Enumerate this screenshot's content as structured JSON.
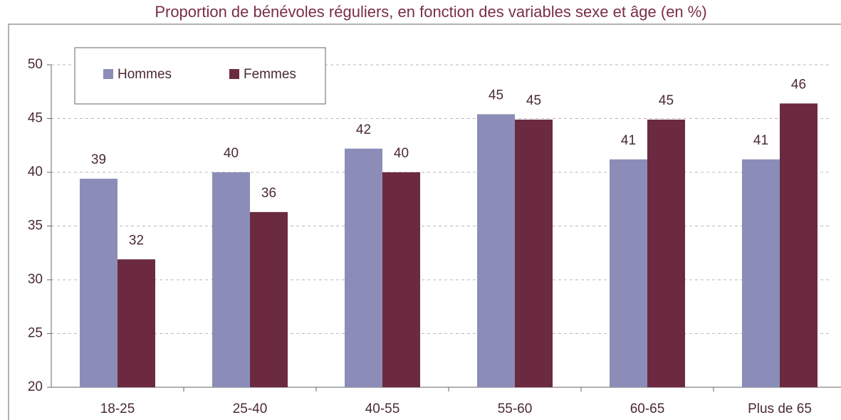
{
  "chart_data": {
    "type": "bar",
    "title": "Proportion de bénévoles réguliers, en fonction des variables sexe et âge (en %)",
    "categories": [
      "18-25",
      "25-40",
      "40-55",
      "55-60",
      "60-65",
      "Plus de 65"
    ],
    "series": [
      {
        "name": "Hommes",
        "color": "#8b8db8",
        "values": [
          39.4,
          40.0,
          42.2,
          45.4,
          41.2,
          41.2
        ],
        "value_labels": [
          "39",
          "40",
          "42",
          "45",
          "41",
          "41"
        ]
      },
      {
        "name": "Femmes",
        "color": "#6b2a40",
        "values": [
          31.9,
          36.3,
          40.0,
          44.9,
          44.9,
          46.4
        ],
        "value_labels": [
          "32",
          "36",
          "40",
          "45",
          "45",
          "46"
        ]
      }
    ],
    "ylim": [
      20,
      50
    ],
    "yticks": [
      20,
      25,
      30,
      35,
      40,
      45,
      50
    ],
    "grid": true,
    "legend": "upper left"
  }
}
